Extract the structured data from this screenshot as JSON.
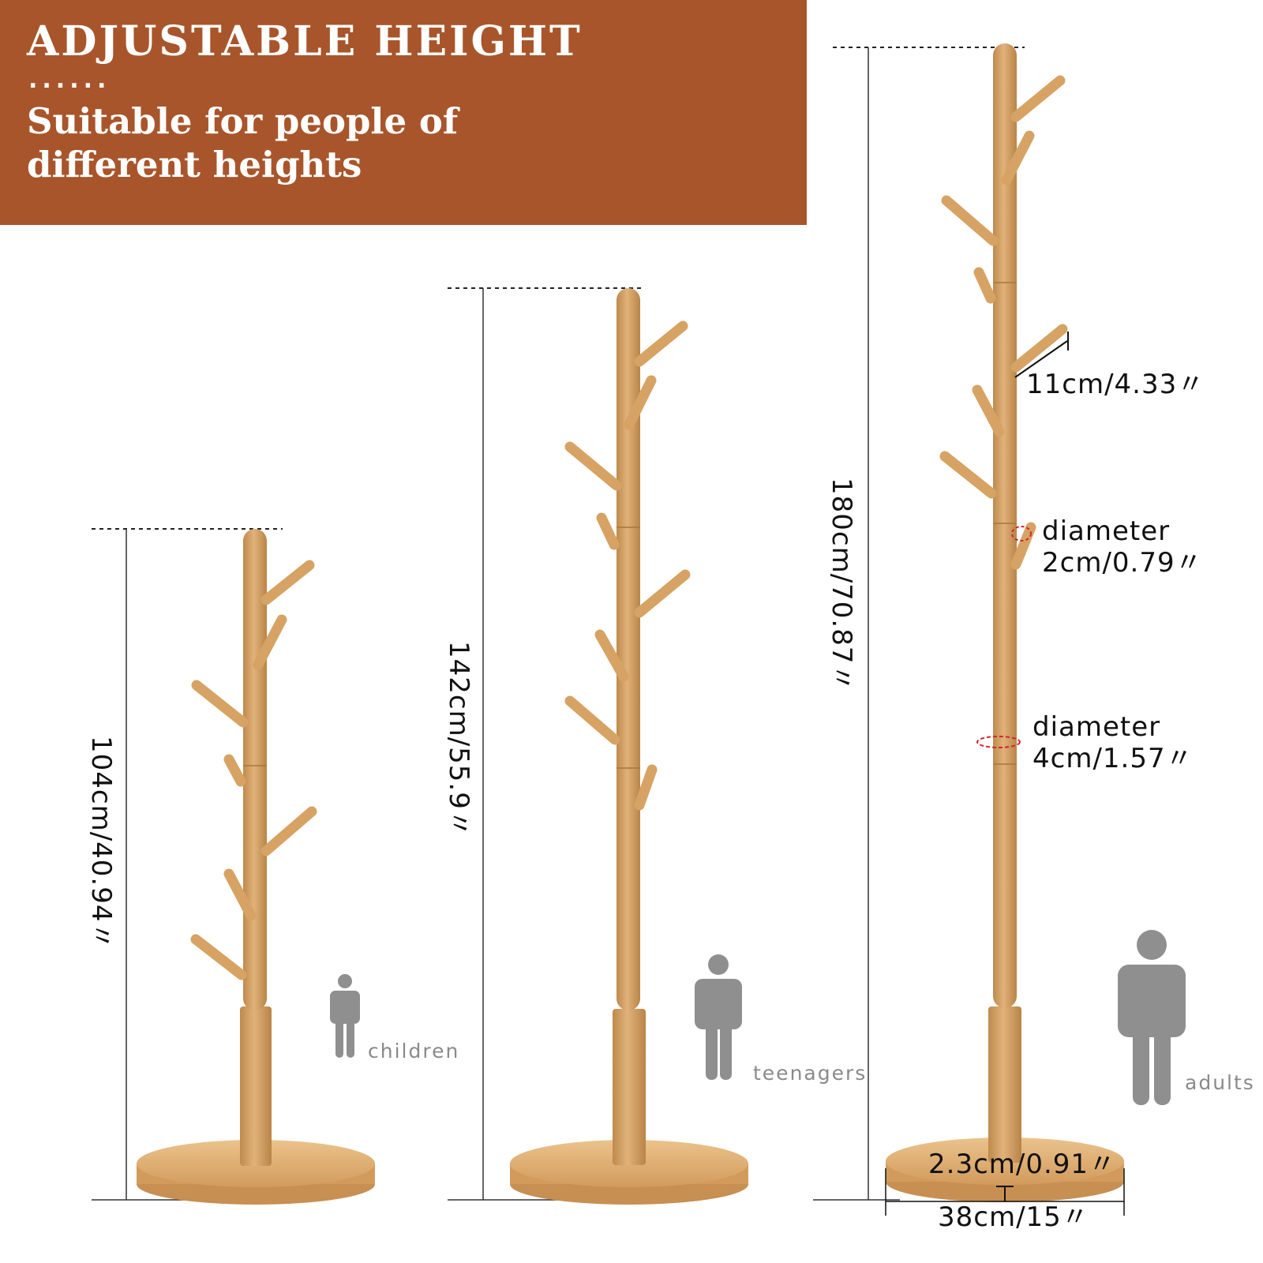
{
  "banner": {
    "title": "ADJUSTABLE HEIGHT",
    "dots": "......",
    "subtitle_line1": "Suitable for people of",
    "subtitle_line2": "different heights",
    "color": "#a9552b"
  },
  "racks": [
    {
      "height_label": "104cm/40.94〃",
      "person_label": "children"
    },
    {
      "height_label": "142cm/55.9〃",
      "person_label": "teenagers"
    },
    {
      "height_label": "180cm/70.87〃",
      "person_label": "adults"
    }
  ],
  "specs": {
    "hook_length": "11cm/4.33〃",
    "small_diameter_title": "diameter",
    "small_diameter_value": "2cm/0.79〃",
    "large_diameter_title": "diameter",
    "large_diameter_value": "4cm/1.57〃",
    "base_thickness": "2.3cm/0.91〃",
    "base_width": "38cm/15〃"
  },
  "colors": {
    "wood": "#d6a364",
    "wood_dark": "#bf8a4d",
    "base": "#e4b57a",
    "person": "#8f8f8f"
  }
}
